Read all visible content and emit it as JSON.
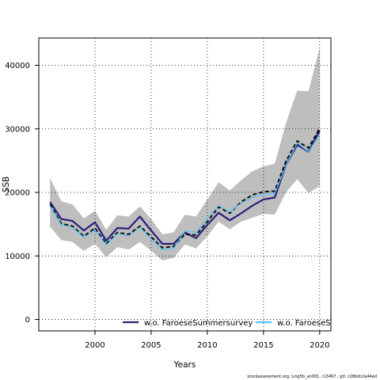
{
  "chart_data": {
    "type": "line",
    "xlabel": "Years",
    "ylabel": "SSB",
    "xlim": [
      1995.0,
      2021.0
    ],
    "ylim": [
      -1800,
      44300
    ],
    "x_ticks": [
      2000,
      2005,
      2010,
      2015,
      2020
    ],
    "y_ticks": [
      0,
      10000,
      20000,
      30000,
      40000
    ],
    "grid": true,
    "grid_style": "dotted",
    "legend_position": "bottom",
    "x": [
      1996,
      1997,
      1998,
      1999,
      2000,
      2001,
      2002,
      2003,
      2004,
      2005,
      2006,
      2007,
      2008,
      2009,
      2010,
      2011,
      2012,
      2013,
      2014,
      2015,
      2016,
      2017,
      2018,
      2019,
      2020
    ],
    "band": {
      "color": "#bebebe",
      "upper": [
        22300,
        18600,
        18100,
        15900,
        17100,
        14100,
        16400,
        16200,
        17800,
        15800,
        13400,
        13700,
        16500,
        16200,
        18900,
        21600,
        20300,
        21900,
        23300,
        24100,
        24500,
        30900,
        36000,
        35900,
        42700
      ],
      "lower": [
        14600,
        12500,
        12200,
        10800,
        11900,
        9800,
        11400,
        11000,
        12200,
        10800,
        9300,
        9700,
        11800,
        11200,
        13100,
        15400,
        14200,
        15400,
        16000,
        16600,
        16500,
        20000,
        22100,
        19900,
        21000
      ]
    },
    "series": [
      {
        "name": "",
        "color": "#000000",
        "dash": "5,3",
        "width": 1.8,
        "values": [
          18100,
          15100,
          14700,
          13100,
          14400,
          11900,
          13700,
          13400,
          14700,
          13000,
          11300,
          11500,
          13400,
          13300,
          15400,
          17700,
          16700,
          18500,
          19600,
          20100,
          20200,
          24900,
          28100,
          27000,
          30100
        ]
      },
      {
        "name": "w.o. FaroeseSummersurvey",
        "color": "#2a1c7a",
        "dash": "",
        "width": 2.2,
        "values": [
          18500,
          15800,
          15500,
          14000,
          15300,
          12400,
          14400,
          14300,
          16200,
          14000,
          11900,
          11900,
          13700,
          12800,
          14900,
          16800,
          15600,
          16700,
          17900,
          18900,
          19200,
          24300,
          27500,
          26400,
          29700
        ]
      },
      {
        "name": "w.o. FaroeseS",
        "color": "#4fc3f7",
        "dash": "",
        "width": 1.2,
        "values": [
          17900,
          14900,
          14500,
          12900,
          14100,
          11700,
          13500,
          13100,
          14500,
          12700,
          11000,
          11200,
          13900,
          13700,
          15900,
          17900,
          16900,
          18300,
          19200,
          19700,
          19800,
          24200,
          27800,
          26400,
          29100
        ]
      }
    ]
  },
  "footer_text": "stockassessment.org, Ling5b_an001, r13467 , git: c28bdc2a44ad"
}
